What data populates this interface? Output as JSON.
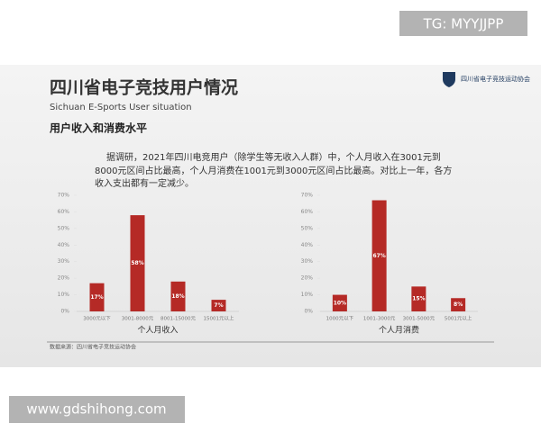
{
  "watermarks": {
    "top": "TG: MYYJJPP",
    "bottom": "www.gdshihong.com"
  },
  "slide": {
    "title": "四川省电子竞技用户情况",
    "subtitle": "Sichuan E-Sports User situation",
    "logo_text": "四川省电子竞技运动协会",
    "section_title": "用户收入和消费水平",
    "paragraph": [
      "据调研，2021年四川电竞用户（除学生等无收入人群）中，个人月收入在3001元到",
      "8000元区间占比最高，个人月消费在1001元到3000元区间占比最高。对比上一年，各方",
      "收入支出都有一定减少。"
    ],
    "source": "数据来源：四川省电子竞技运动协会"
  },
  "chart_data": [
    {
      "type": "bar",
      "xlabel": "个人月收入",
      "categories": [
        "3000元以下",
        "3001-8000元",
        "8001-15000元",
        "15001元以上"
      ],
      "values": [
        17,
        58,
        18,
        7
      ],
      "value_labels": [
        "17%",
        "58%",
        "18%",
        "7%"
      ],
      "color": "#b52a26",
      "ylim": [
        0,
        70
      ],
      "yticks": [
        {
          "value": 0,
          "label": "0%"
        },
        {
          "value": 10,
          "label": "10%"
        },
        {
          "value": 20,
          "label": "20%"
        },
        {
          "value": 30,
          "label": "30%"
        },
        {
          "value": 40,
          "label": "40%"
        },
        {
          "value": 50,
          "label": "50%"
        },
        {
          "value": 60,
          "label": "60%"
        },
        {
          "value": 70,
          "label": "70%"
        }
      ]
    },
    {
      "type": "bar",
      "xlabel": "个人月消费",
      "categories": [
        "1000元以下",
        "1001-3000元",
        "3001-5000元",
        "5001元以上"
      ],
      "values": [
        10,
        67,
        15,
        8
      ],
      "value_labels": [
        "10%",
        "67%",
        "15%",
        "8%"
      ],
      "color": "#b52a26",
      "ylim": [
        0,
        70
      ],
      "yticks": [
        {
          "value": 0,
          "label": "0%"
        },
        {
          "value": 10,
          "label": "10%"
        },
        {
          "value": 20,
          "label": "20%"
        },
        {
          "value": 30,
          "label": "30%"
        },
        {
          "value": 40,
          "label": "40%"
        },
        {
          "value": 50,
          "label": "50%"
        },
        {
          "value": 60,
          "label": "60%"
        },
        {
          "value": 70,
          "label": "70%"
        }
      ]
    }
  ]
}
